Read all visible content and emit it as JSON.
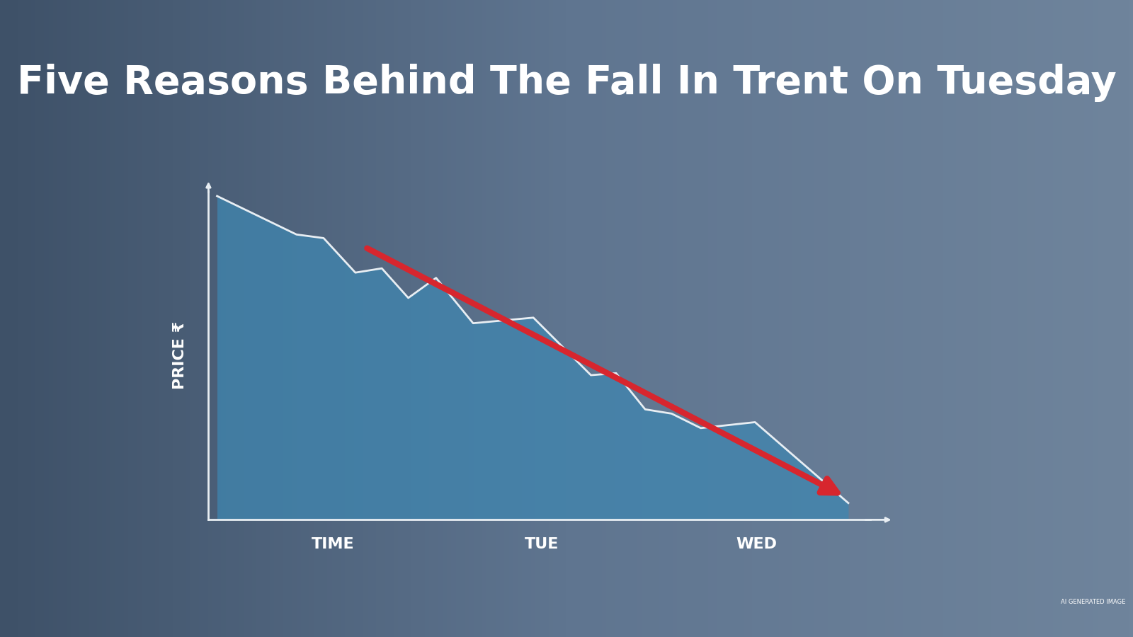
{
  "chart_data": {
    "type": "area",
    "title": "Five Reasons Behind The Fall In Trent On Tuesday",
    "y_label": "PRICE ₹",
    "annotations": [
      "AI GENERATED IMAGE"
    ],
    "x": [
      1.3,
      13.3,
      17.4,
      22.2,
      26.2,
      30.2,
      34.4,
      40.0,
      49.1,
      57.8,
      61.6,
      66.0,
      70.0,
      74.4,
      82.6,
      96.7
    ],
    "values": [
      98.5,
      86.8,
      85.7,
      75.2,
      76.5,
      67.5,
      73.6,
      59.8,
      61.5,
      44.0,
      44.6,
      33.6,
      32.3,
      27.9,
      29.7,
      5.1
    ],
    "color": "#3f86b0",
    "xlim": [
      0,
      100
    ],
    "xticks": [
      {
        "value": 18.8,
        "label": "TIME"
      },
      {
        "value": 50.4,
        "label": "TUE"
      },
      {
        "value": 82.8,
        "label": "WED"
      }
    ],
    "ylim": [
      0,
      100
    ],
    "tick_labels": "x",
    "grid": false
  }
}
